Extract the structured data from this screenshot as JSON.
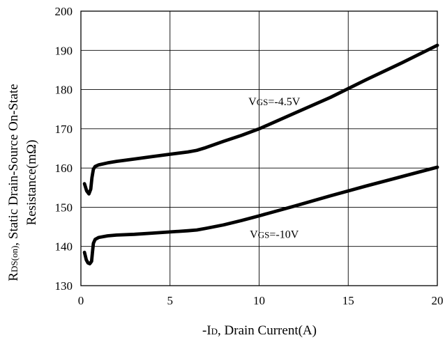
{
  "chart_data": {
    "type": "line",
    "xlabel": {
      "prefix": "-I",
      "sub": "D",
      "rest": ", Drain Current(A)"
    },
    "ylabel": {
      "line1_prefix": "R",
      "line1_sub": "DS(on)",
      "line1_rest": ", Static Drain-Source On-State",
      "line2": "Resistance(mΩ)"
    },
    "xlim": [
      0,
      20
    ],
    "ylim": [
      130,
      200
    ],
    "x_ticks": [
      0,
      5,
      10,
      15,
      20
    ],
    "y_ticks": [
      130,
      140,
      150,
      160,
      170,
      180,
      190,
      200
    ],
    "x_tick_labels": [
      "0",
      "5",
      "10",
      "15",
      "20"
    ],
    "y_tick_labels": [
      "130",
      "140",
      "150",
      "160",
      "170",
      "180",
      "190",
      "200"
    ],
    "grid": true,
    "line_color": "#000000",
    "series": [
      {
        "name": {
          "prefix": "V",
          "sub": "GS",
          "rest": "=-4.5V"
        },
        "x": [
          0.2,
          0.32,
          0.45,
          0.55,
          0.62,
          0.7,
          0.8,
          1.0,
          1.5,
          2,
          3,
          4,
          5,
          6,
          6.5,
          7,
          8,
          9,
          10,
          12,
          14,
          16,
          18,
          20
        ],
        "y": [
          156,
          154.2,
          153.4,
          154.6,
          157.5,
          159.7,
          160.4,
          160.8,
          161.3,
          161.7,
          162.3,
          162.9,
          163.5,
          164.1,
          164.5,
          165.2,
          166.8,
          168.3,
          170,
          174,
          178,
          182.5,
          186.8,
          191.3
        ]
      },
      {
        "name": {
          "prefix": "V",
          "sub": "GS",
          "rest": "=-10V"
        },
        "x": [
          0.2,
          0.3,
          0.4,
          0.5,
          0.6,
          0.65,
          0.7,
          0.8,
          1.0,
          1.5,
          2,
          3,
          4,
          5,
          6,
          6.5,
          7,
          8,
          9,
          10,
          12,
          14,
          16,
          18,
          20
        ],
        "y": [
          138.5,
          136.6,
          135.8,
          135.6,
          136.2,
          138.6,
          140.8,
          141.8,
          142.3,
          142.7,
          142.9,
          143.1,
          143.4,
          143.7,
          144.0,
          144.2,
          144.6,
          145.5,
          146.6,
          147.8,
          150.3,
          152.9,
          155.4,
          157.8,
          160.2
        ]
      }
    ],
    "annotations": [
      {
        "prefix": "V",
        "sub": "GS",
        "rest": "=-4.5V",
        "x": 10.85,
        "y": 176.0
      },
      {
        "prefix": "V",
        "sub": "GS",
        "rest": "=-10V",
        "x": 10.85,
        "y": 142.2
      }
    ]
  }
}
